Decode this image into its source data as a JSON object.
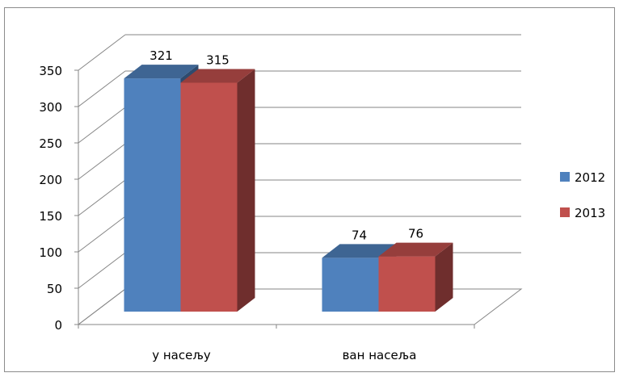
{
  "chart_data": {
    "type": "bar",
    "categories": [
      "у насељу",
      "ван насеља"
    ],
    "series": [
      {
        "name": "2012",
        "values": [
          321,
          74
        ],
        "color": "#4F81BD"
      },
      {
        "name": "2013",
        "values": [
          315,
          76
        ],
        "color": "#C0504D"
      }
    ],
    "ylim": [
      0,
      350
    ],
    "yticks": [
      0,
      50,
      100,
      150,
      200,
      250,
      300,
      350
    ],
    "grid": true,
    "legend_position": "right",
    "data_labels": true,
    "style": "3d-clustered-column"
  }
}
